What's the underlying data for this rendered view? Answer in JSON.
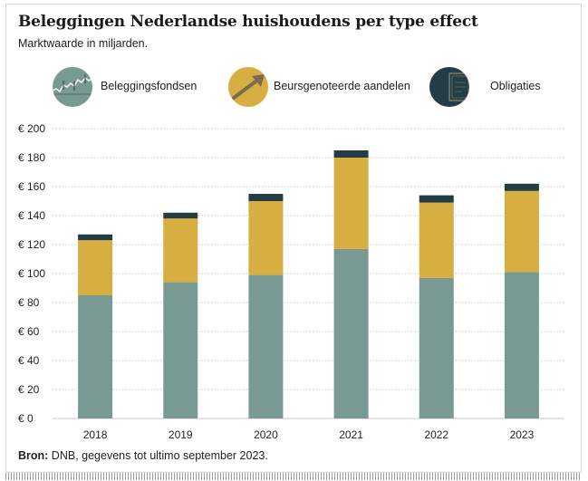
{
  "title": "Beleggingen Nederlandse huishoudens per type effect",
  "subtitle": "Marktwaarde in miljarden.",
  "legend": [
    {
      "label": "Beleggingsfondsen",
      "icon": "stock-chart-icon",
      "color": "#799993"
    },
    {
      "label": "Beursgenoteerde aandelen",
      "icon": "rising-arrow-icon",
      "color": "#d6ae42"
    },
    {
      "label": "Obligaties",
      "icon": "bond-certificate-icon",
      "color": "#243d45"
    }
  ],
  "source": {
    "label": "Bron:",
    "text": " DNB, gegevens tot ultimo september 2023."
  },
  "chart_data": {
    "type": "bar",
    "stacked": true,
    "categories": [
      "2018",
      "2019",
      "2020",
      "2021",
      "2022",
      "2023"
    ],
    "series": [
      {
        "name": "Beleggingsfondsen",
        "color": "#799993",
        "values": [
          85,
          94,
          99,
          117,
          97,
          101
        ]
      },
      {
        "name": "Beursgenoteerde aandelen",
        "color": "#d6ae42",
        "values": [
          38,
          44,
          51,
          63,
          52,
          56
        ]
      },
      {
        "name": "Obligaties",
        "color": "#243d45",
        "values": [
          4,
          4,
          5,
          5,
          5,
          5
        ]
      }
    ],
    "ylim": [
      0,
      200
    ],
    "yticks": [
      0,
      20,
      40,
      60,
      80,
      100,
      120,
      140,
      160,
      180,
      200
    ],
    "ytick_labels": [
      "€ 0",
      "€ 20",
      "€ 40",
      "€ 60",
      "€ 80",
      "€ 100",
      "€ 120",
      "€ 140",
      "€ 160",
      "€ 180",
      "€ 200"
    ],
    "grid": true,
    "legend_position": "top"
  }
}
